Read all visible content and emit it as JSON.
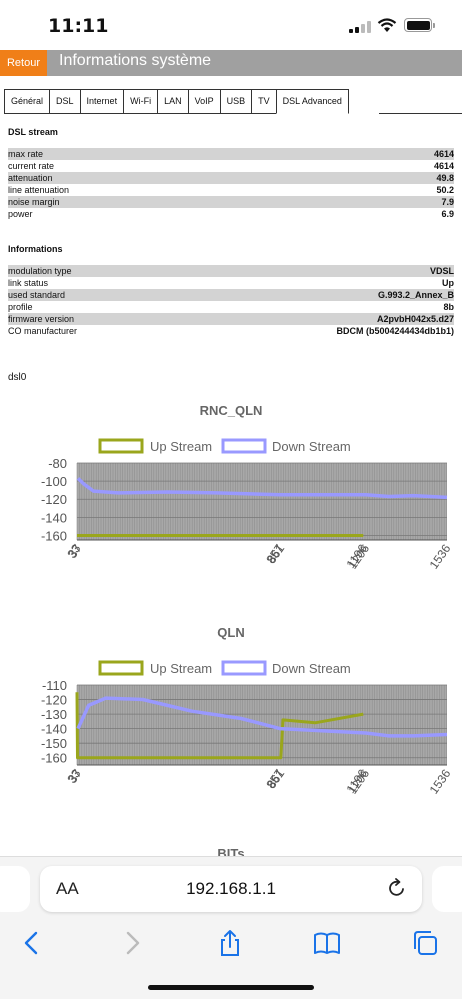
{
  "status": {
    "time": "11:11"
  },
  "header": {
    "back_label": "Retour",
    "title": "Informations système"
  },
  "tabs": [
    {
      "label": "Général"
    },
    {
      "label": "DSL"
    },
    {
      "label": "Internet"
    },
    {
      "label": "Wi-Fi"
    },
    {
      "label": "LAN"
    },
    {
      "label": "VoIP"
    },
    {
      "label": "USB"
    },
    {
      "label": "TV"
    },
    {
      "label": "DSL Advanced"
    }
  ],
  "dsl_stream": {
    "title": "DSL stream",
    "rows": [
      {
        "key": "max rate",
        "value": "4614"
      },
      {
        "key": "current rate",
        "value": "4614"
      },
      {
        "key": "attenuation",
        "value": "49.8"
      },
      {
        "key": "line attenuation",
        "value": "50.2"
      },
      {
        "key": "noise margin",
        "value": "7.9"
      },
      {
        "key": "power",
        "value": "6.9"
      }
    ]
  },
  "informations": {
    "title": "Informations",
    "rows": [
      {
        "key": "modulation type",
        "value": "VDSL"
      },
      {
        "key": "link status",
        "value": "Up"
      },
      {
        "key": "used standard",
        "value": "G.993.2_Annex_B"
      },
      {
        "key": "profile",
        "value": "8b"
      },
      {
        "key": "firmware version",
        "value": "A2pvbH042x5.d27"
      },
      {
        "key": "CO manufacturer",
        "value": "BDCM (b5004244434db1b1)"
      }
    ]
  },
  "interface_label": "dsl0",
  "chart_data": [
    {
      "type": "line",
      "title": "RNC_QLN",
      "legend": [
        "Up Stream",
        "Down Stream"
      ],
      "legend_placement": "top",
      "colors": {
        "up": "#9aa61c",
        "down": "#9999ff"
      },
      "ylim": [
        -165,
        -80
      ],
      "yticks": [
        -80,
        -100,
        -120,
        -140,
        -160
      ],
      "xticks": [
        "33",
        "37",
        "857",
        "861",
        "1196",
        "1206",
        "1536"
      ],
      "xlim": [
        33,
        1536
      ],
      "series": [
        {
          "name": "Up Stream",
          "x": [
            33,
            37,
            861,
            1196
          ],
          "y": [
            -160,
            -160,
            -160,
            -160
          ]
        },
        {
          "name": "Down Stream",
          "x": [
            37,
            60,
            100,
            200,
            400,
            600,
            857,
            1206,
            1300,
            1400,
            1536
          ],
          "y": [
            -97,
            -103,
            -111,
            -113,
            -112,
            -113,
            -115,
            -115,
            -117,
            -116,
            -118
          ]
        }
      ],
      "grid": true
    },
    {
      "type": "line",
      "title": "QLN",
      "legend": [
        "Up Stream",
        "Down Stream"
      ],
      "legend_placement": "top",
      "colors": {
        "up": "#9aa61c",
        "down": "#9999ff"
      },
      "ylim": [
        -165,
        -110
      ],
      "yticks": [
        -110,
        -120,
        -130,
        -140,
        -150,
        -160
      ],
      "xticks": [
        "33",
        "37",
        "857",
        "861",
        "1196",
        "1206",
        "1536"
      ],
      "xlim": [
        33,
        1536
      ],
      "series": [
        {
          "name": "Up Stream",
          "x": [
            33,
            35,
            37,
            861,
            870,
            1000,
            1196
          ],
          "y": [
            -115,
            -160,
            -160,
            -160,
            -134,
            -136,
            -130
          ]
        },
        {
          "name": "Down Stream",
          "x": [
            37,
            80,
            150,
            300,
            500,
            700,
            857,
            1206,
            1300,
            1400,
            1536
          ],
          "y": [
            -140,
            -124,
            -119,
            -120,
            -128,
            -133,
            -140,
            -143,
            -145,
            -145,
            -144
          ]
        }
      ],
      "grid": true
    }
  ],
  "next_section_partial": "BITs",
  "browser": {
    "aa_label": "AA",
    "url": "192.168.1.1"
  }
}
